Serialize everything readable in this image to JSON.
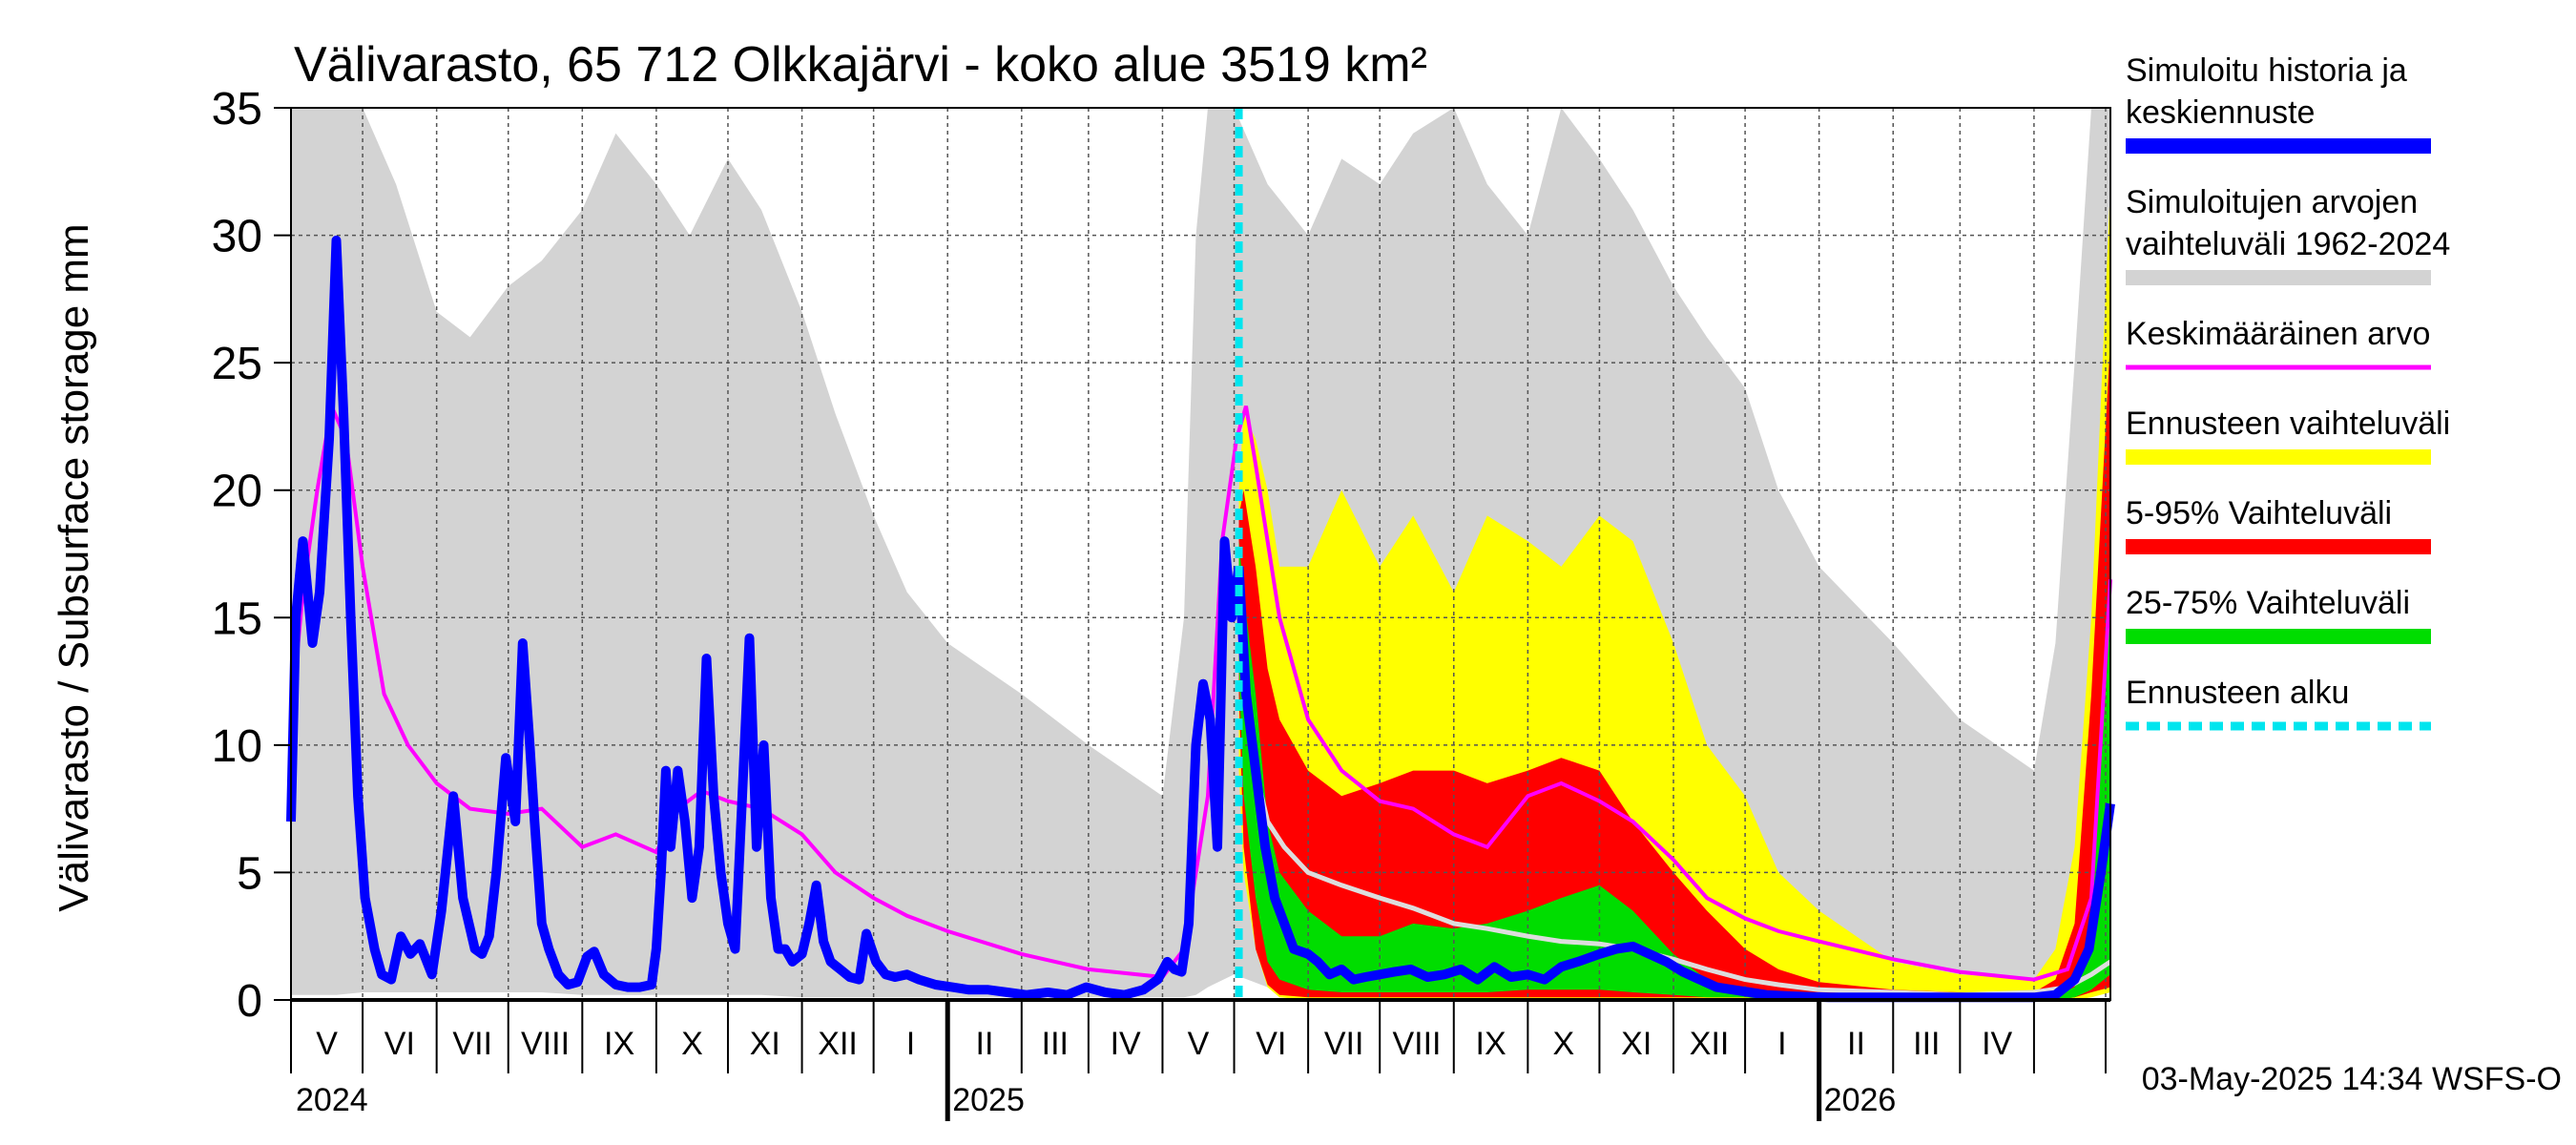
{
  "chart_data": {
    "type": "area",
    "title": "Välivarasto, 65 712 Olkkajärvi - koko alue 3519 km²",
    "ylabel": "Välivarasto / Subsurface storage  mm",
    "ylim": [
      0,
      35
    ],
    "yticks": [
      "0",
      "5",
      "10",
      "15",
      "20",
      "25",
      "30",
      "35"
    ],
    "x_range": [
      "2024-04-01",
      "2026-05-03"
    ],
    "forecast_start": "2025-05-03",
    "grid": true,
    "legend_position": "right",
    "month_labels": [
      "V",
      "VI",
      "VII",
      "VIII",
      "IX",
      "X",
      "XI",
      "XII",
      "I",
      "II",
      "III",
      "IV",
      "V",
      "VI",
      "VII",
      "VIII",
      "IX",
      "X",
      "XI",
      "XII",
      "I",
      "II",
      "III",
      "IV"
    ],
    "year_labels": [
      "2024",
      "2025",
      "2026"
    ],
    "footer": "03-May-2025 14:34 WSFS-O",
    "colors": {
      "history": "#0000ff",
      "range": "#d3d3d3",
      "mean": "#ff00ff",
      "forecast_range": "#ffff00",
      "p5_95": "#ff0000",
      "p25_75": "#00dd00",
      "forecast_start": "#00e5ee",
      "median": "#dddddd"
    },
    "legend": [
      {
        "label": "Simuloitu historia ja",
        "label2": "keskiennuste",
        "key": "history"
      },
      {
        "label": "Simuloitujen arvojen",
        "label2": "vaihteluväli 1962-2024",
        "key": "range"
      },
      {
        "label": "Keskimääräinen arvo",
        "key": "mean"
      },
      {
        "label": "Ennusteen vaihteluväli",
        "key": "forecast_range"
      },
      {
        "label": "5-95% Vaihteluväli",
        "key": "p5_95"
      },
      {
        "label": "25-75% Vaihteluväli",
        "key": "p25_75"
      },
      {
        "label": "Ennusteen alku",
        "key": "forecast_start"
      }
    ],
    "series": {
      "history": {
        "x": [
          "2024-04-01",
          "2024-04-03",
          "2024-04-06",
          "2024-04-10",
          "2024-04-13",
          "2024-04-17",
          "2024-04-20",
          "2024-04-23",
          "2024-04-26",
          "2024-04-29",
          "2024-05-02",
          "2024-05-06",
          "2024-05-09",
          "2024-05-13",
          "2024-05-17",
          "2024-05-21",
          "2024-05-25",
          "2024-05-30",
          "2024-06-03",
          "2024-06-08",
          "2024-06-12",
          "2024-06-17",
          "2024-06-20",
          "2024-06-23",
          "2024-06-26",
          "2024-06-30",
          "2024-07-04",
          "2024-07-07",
          "2024-07-10",
          "2024-07-12",
          "2024-07-15",
          "2024-07-18",
          "2024-07-22",
          "2024-07-26",
          "2024-07-30",
          "2024-08-03",
          "2024-08-06",
          "2024-08-10",
          "2024-08-15",
          "2024-08-20",
          "2024-08-25",
          "2024-08-30",
          "2024-09-01",
          "2024-09-03",
          "2024-09-05",
          "2024-09-07",
          "2024-09-10",
          "2024-09-13",
          "2024-09-16",
          "2024-09-19",
          "2024-09-22",
          "2024-09-25",
          "2024-09-28",
          "2024-10-01",
          "2024-10-04",
          "2024-10-07",
          "2024-10-10",
          "2024-10-13",
          "2024-10-16",
          "2024-10-19",
          "2024-10-22",
          "2024-10-25",
          "2024-10-28",
          "2024-11-01",
          "2024-11-04",
          "2024-11-07",
          "2024-11-10",
          "2024-11-13",
          "2024-11-17",
          "2024-11-21",
          "2024-11-25",
          "2024-11-28",
          "2024-12-02",
          "2024-12-06",
          "2024-12-10",
          "2024-12-15",
          "2024-12-20",
          "2024-12-27",
          "2025-01-03",
          "2025-01-10",
          "2025-01-18",
          "2025-01-26",
          "2025-02-03",
          "2025-02-12",
          "2025-02-20",
          "2025-02-28",
          "2025-03-08",
          "2025-03-16",
          "2025-03-24",
          "2025-03-30",
          "2025-04-03",
          "2025-04-06",
          "2025-04-09",
          "2025-04-12",
          "2025-04-15",
          "2025-04-18",
          "2025-04-21",
          "2025-04-24",
          "2025-04-27",
          "2025-04-30",
          "2025-05-03"
        ],
        "y": [
          7,
          15,
          18,
          14,
          16,
          22,
          29.8,
          23,
          15,
          8,
          4,
          2,
          1,
          0.8,
          2.5,
          1.8,
          2.2,
          1,
          3.5,
          8,
          4,
          2,
          1.8,
          2.5,
          5,
          9.5,
          7,
          14,
          10,
          7,
          3,
          2,
          1,
          0.6,
          0.7,
          1.7,
          1.9,
          1,
          0.6,
          0.5,
          0.5,
          0.6,
          2,
          5,
          9,
          6,
          9,
          7,
          4,
          6,
          13.4,
          8,
          5,
          3,
          2,
          8,
          14.2,
          6,
          10,
          4,
          2,
          2,
          1.5,
          1.8,
          3,
          4.5,
          2.3,
          1.5,
          1.2,
          0.9,
          0.8,
          2.6,
          1.5,
          1,
          0.9,
          1,
          0.8,
          0.6,
          0.5,
          0.4,
          0.4,
          0.3,
          0.2,
          0.3,
          0.2,
          0.5,
          0.3,
          0.2,
          0.4,
          0.8,
          1.5,
          1.2,
          1.1,
          3,
          10,
          12.4,
          11,
          6,
          18,
          15,
          17
        ]
      },
      "median": {
        "x": [
          "2025-05-03",
          "2025-05-06",
          "2025-05-10",
          "2025-05-15",
          "2025-05-22",
          "2025-06-01",
          "2025-06-15",
          "2025-07-01",
          "2025-07-15",
          "2025-08-01",
          "2025-08-15",
          "2025-09-01",
          "2025-09-15",
          "2025-10-01",
          "2025-10-15",
          "2025-11-01",
          "2025-11-15",
          "2025-12-01",
          "2025-12-15",
          "2026-01-01",
          "2026-02-01",
          "2026-03-01",
          "2026-04-01",
          "2026-04-15",
          "2026-04-25",
          "2026-05-03"
        ],
        "y": [
          17,
          12,
          9,
          7,
          6,
          5,
          4.5,
          4,
          3.6,
          3,
          2.8,
          2.5,
          2.3,
          2.2,
          2,
          1.6,
          1.2,
          0.8,
          0.6,
          0.4,
          0.3,
          0.2,
          0.3,
          0.5,
          1,
          1.5
        ]
      },
      "forecast_mean": {
        "x": [
          "2025-05-03",
          "2025-05-06",
          "2025-05-10",
          "2025-05-14",
          "2025-05-18",
          "2025-05-22",
          "2025-05-26",
          "2025-06-01",
          "2025-06-05",
          "2025-06-10",
          "2025-06-15",
          "2025-06-20",
          "2025-06-25",
          "2025-07-01",
          "2025-07-07",
          "2025-07-14",
          "2025-07-21",
          "2025-07-28",
          "2025-08-04",
          "2025-08-11",
          "2025-08-18",
          "2025-08-25",
          "2025-09-01",
          "2025-09-08",
          "2025-09-15",
          "2025-09-22",
          "2025-10-01",
          "2025-10-08",
          "2025-10-15",
          "2025-10-22",
          "2025-10-29",
          "2025-11-05",
          "2025-11-12",
          "2025-11-19",
          "2025-11-26",
          "2025-12-03",
          "2025-12-10",
          "2025-12-20",
          "2026-01-05",
          "2026-02-01",
          "2026-03-01",
          "2026-04-01",
          "2026-04-10",
          "2026-04-18",
          "2026-04-24",
          "2026-04-29",
          "2026-05-03"
        ],
        "y": [
          17,
          12,
          9,
          6,
          4,
          3,
          2,
          1.8,
          1.5,
          1,
          1.2,
          0.8,
          0.9,
          1,
          1.1,
          1.2,
          0.9,
          1,
          1.2,
          0.8,
          1.3,
          0.9,
          1,
          0.8,
          1.3,
          1.5,
          1.8,
          2,
          2.1,
          1.8,
          1.5,
          1.1,
          0.8,
          0.5,
          0.4,
          0.3,
          0.2,
          0.15,
          0.1,
          0.1,
          0.1,
          0.1,
          0.2,
          0.8,
          2,
          5,
          7.7
        ]
      },
      "mean": {
        "x": [
          "2024-04-01",
          "2024-04-06",
          "2024-04-12",
          "2024-04-18",
          "2024-04-24",
          "2024-05-01",
          "2024-05-10",
          "2024-05-20",
          "2024-06-01",
          "2024-06-15",
          "2024-07-01",
          "2024-07-15",
          "2024-08-01",
          "2024-08-15",
          "2024-09-01",
          "2024-09-10",
          "2024-09-20",
          "2024-10-01",
          "2024-10-15",
          "2024-11-01",
          "2024-11-15",
          "2024-12-01",
          "2024-12-15",
          "2025-01-01",
          "2025-02-01",
          "2025-03-01",
          "2025-04-01",
          "2025-04-10",
          "2025-04-20",
          "2025-04-26",
          "2025-05-02",
          "2025-05-06",
          "2025-05-10",
          "2025-05-20",
          "2025-06-01",
          "2025-06-15",
          "2025-07-01",
          "2025-07-15",
          "2025-08-01",
          "2025-08-15",
          "2025-09-01",
          "2025-09-15",
          "2025-10-01",
          "2025-10-15",
          "2025-11-01",
          "2025-11-15",
          "2025-12-01",
          "2025-12-15",
          "2026-01-01",
          "2026-02-01",
          "2026-03-01",
          "2026-04-01",
          "2026-04-15",
          "2026-04-25",
          "2026-05-03"
        ],
        "y": [
          11,
          16,
          20,
          23.3,
          22,
          17,
          12,
          10,
          8.5,
          7.5,
          7.3,
          7.5,
          6,
          6.5,
          5.8,
          7.5,
          8.2,
          7.8,
          7.5,
          6.5,
          5,
          4,
          3.3,
          2.7,
          1.8,
          1.2,
          0.9,
          2,
          8,
          18,
          22,
          23.3,
          21,
          15,
          11,
          9,
          7.8,
          7.5,
          6.5,
          6,
          8,
          8.5,
          7.8,
          7,
          5.5,
          4,
          3.2,
          2.7,
          2.3,
          1.6,
          1.1,
          0.8,
          1.2,
          4,
          16.5
        ]
      }
    },
    "bands": {
      "range": {
        "x": [
          "2024-04-01",
          "2024-04-10",
          "2024-04-20",
          "2024-05-01",
          "2024-05-15",
          "2024-06-01",
          "2024-06-15",
          "2024-07-01",
          "2024-07-15",
          "2024-08-01",
          "2024-08-15",
          "2024-09-01",
          "2024-09-15",
          "2024-10-01",
          "2024-10-15",
          "2024-11-01",
          "2024-11-15",
          "2024-12-01",
          "2024-12-15",
          "2025-01-01",
          "2025-02-01",
          "2025-03-01",
          "2025-04-01",
          "2025-04-10",
          "2025-04-15",
          "2025-04-20",
          "2025-05-01",
          "2025-05-15",
          "2025-06-01",
          "2025-06-15",
          "2025-07-01",
          "2025-07-15",
          "2025-08-01",
          "2025-08-15",
          "2025-09-01",
          "2025-09-15",
          "2025-10-01",
          "2025-10-15",
          "2025-11-01",
          "2025-11-15",
          "2025-12-01",
          "2025-12-15",
          "2026-01-01",
          "2026-02-01",
          "2026-03-01",
          "2026-04-01",
          "2026-04-10",
          "2026-04-18",
          "2026-04-25",
          "2026-05-03"
        ],
        "low": [
          0.2,
          0.2,
          0.2,
          0.3,
          0.3,
          0.3,
          0.3,
          0.3,
          0.3,
          0.2,
          0.2,
          0.2,
          0.2,
          0.2,
          0.2,
          0.1,
          0.1,
          0.1,
          0.1,
          0.1,
          0.1,
          0.1,
          0.1,
          0.1,
          0.2,
          0.5,
          1,
          0.5,
          0.3,
          0.3,
          0.3,
          0.3,
          0.2,
          0.2,
          0.2,
          0.2,
          0.2,
          0.2,
          0.1,
          0.1,
          0.1,
          0.1,
          0.1,
          0.1,
          0.1,
          0.1,
          0.1,
          0.2,
          0.3,
          0.5
        ],
        "high": [
          35,
          35,
          35,
          35,
          32,
          27,
          26,
          28,
          29,
          31,
          34,
          32,
          30,
          33,
          31,
          27,
          23,
          19,
          16,
          14,
          12,
          10,
          8,
          15,
          30,
          35,
          35,
          32,
          30,
          33,
          32,
          34,
          35,
          32,
          30,
          35,
          33,
          31,
          28,
          26,
          24,
          20,
          17,
          14,
          11,
          9,
          14,
          25,
          35,
          35
        ]
      },
      "forecast_range": {
        "x": [
          "2025-05-03",
          "2025-05-05",
          "2025-05-10",
          "2025-05-15",
          "2025-05-20",
          "2025-06-01",
          "2025-06-15",
          "2025-07-01",
          "2025-07-15",
          "2025-08-01",
          "2025-08-15",
          "2025-09-01",
          "2025-09-15",
          "2025-10-01",
          "2025-10-15",
          "2025-11-01",
          "2025-11-15",
          "2025-12-01",
          "2025-12-15",
          "2026-01-01",
          "2026-02-01",
          "2026-03-01",
          "2026-04-01",
          "2026-04-10",
          "2026-04-18",
          "2026-04-25",
          "2026-05-03"
        ],
        "low": [
          9,
          5,
          2,
          0.5,
          0.1,
          0,
          0,
          0,
          0,
          0,
          0,
          0,
          0,
          0,
          0,
          0,
          0,
          0,
          0,
          0,
          0,
          0,
          0,
          0,
          0,
          0.1,
          0.3
        ],
        "high": [
          20,
          23,
          22,
          20,
          17,
          17,
          20,
          17,
          19,
          16,
          19,
          18,
          17,
          19,
          18,
          14,
          10,
          8,
          5,
          3.5,
          1.5,
          1,
          0.8,
          2,
          6,
          15,
          32
        ]
      },
      "p5_95": {
        "x": [
          "2025-05-03",
          "2025-05-05",
          "2025-05-10",
          "2025-05-15",
          "2025-05-20",
          "2025-06-01",
          "2025-06-15",
          "2025-07-01",
          "2025-07-15",
          "2025-08-01",
          "2025-08-15",
          "2025-09-01",
          "2025-09-15",
          "2025-10-01",
          "2025-10-15",
          "2025-11-01",
          "2025-11-15",
          "2025-12-01",
          "2025-12-15",
          "2026-01-01",
          "2026-02-01",
          "2026-03-01",
          "2026-04-01",
          "2026-04-10",
          "2026-04-18",
          "2026-04-25",
          "2026-05-03"
        ],
        "low": [
          12,
          6,
          2,
          0.6,
          0.2,
          0.1,
          0.1,
          0.1,
          0.1,
          0.1,
          0.1,
          0.1,
          0.1,
          0.1,
          0.1,
          0.1,
          0.1,
          0.1,
          0,
          0,
          0,
          0,
          0,
          0,
          0.1,
          0.3,
          0.5
        ],
        "high": [
          19,
          20,
          17,
          13,
          11,
          9,
          8,
          8.5,
          9,
          9,
          8.5,
          9,
          9.5,
          9,
          7,
          5,
          3.5,
          2,
          1.2,
          0.7,
          0.4,
          0.3,
          0.3,
          0.8,
          3,
          12,
          26
        ]
      },
      "p25_75": {
        "x": [
          "2025-05-03",
          "2025-05-05",
          "2025-05-10",
          "2025-05-15",
          "2025-05-20",
          "2025-06-01",
          "2025-06-15",
          "2025-07-01",
          "2025-07-15",
          "2025-08-01",
          "2025-08-15",
          "2025-09-01",
          "2025-09-15",
          "2025-10-01",
          "2025-10-15",
          "2025-11-01",
          "2025-11-15",
          "2025-12-01",
          "2025-12-15",
          "2026-01-01",
          "2026-02-01",
          "2026-03-01",
          "2026-04-01",
          "2026-04-10",
          "2026-04-18",
          "2026-04-25",
          "2026-05-03"
        ],
        "low": [
          13,
          8,
          4,
          1.5,
          0.8,
          0.4,
          0.3,
          0.3,
          0.3,
          0.3,
          0.3,
          0.4,
          0.4,
          0.4,
          0.3,
          0.2,
          0.1,
          0.1,
          0,
          0,
          0,
          0,
          0,
          0,
          0.1,
          0.4,
          1
        ],
        "high": [
          18,
          16,
          12,
          7,
          5,
          3.5,
          2.5,
          2.5,
          3,
          2.8,
          3,
          3.5,
          4,
          4.5,
          3.5,
          1.8,
          0.8,
          0.4,
          0.2,
          0.1,
          0.1,
          0.1,
          0.1,
          0.2,
          0.5,
          3,
          17
        ]
      }
    }
  }
}
